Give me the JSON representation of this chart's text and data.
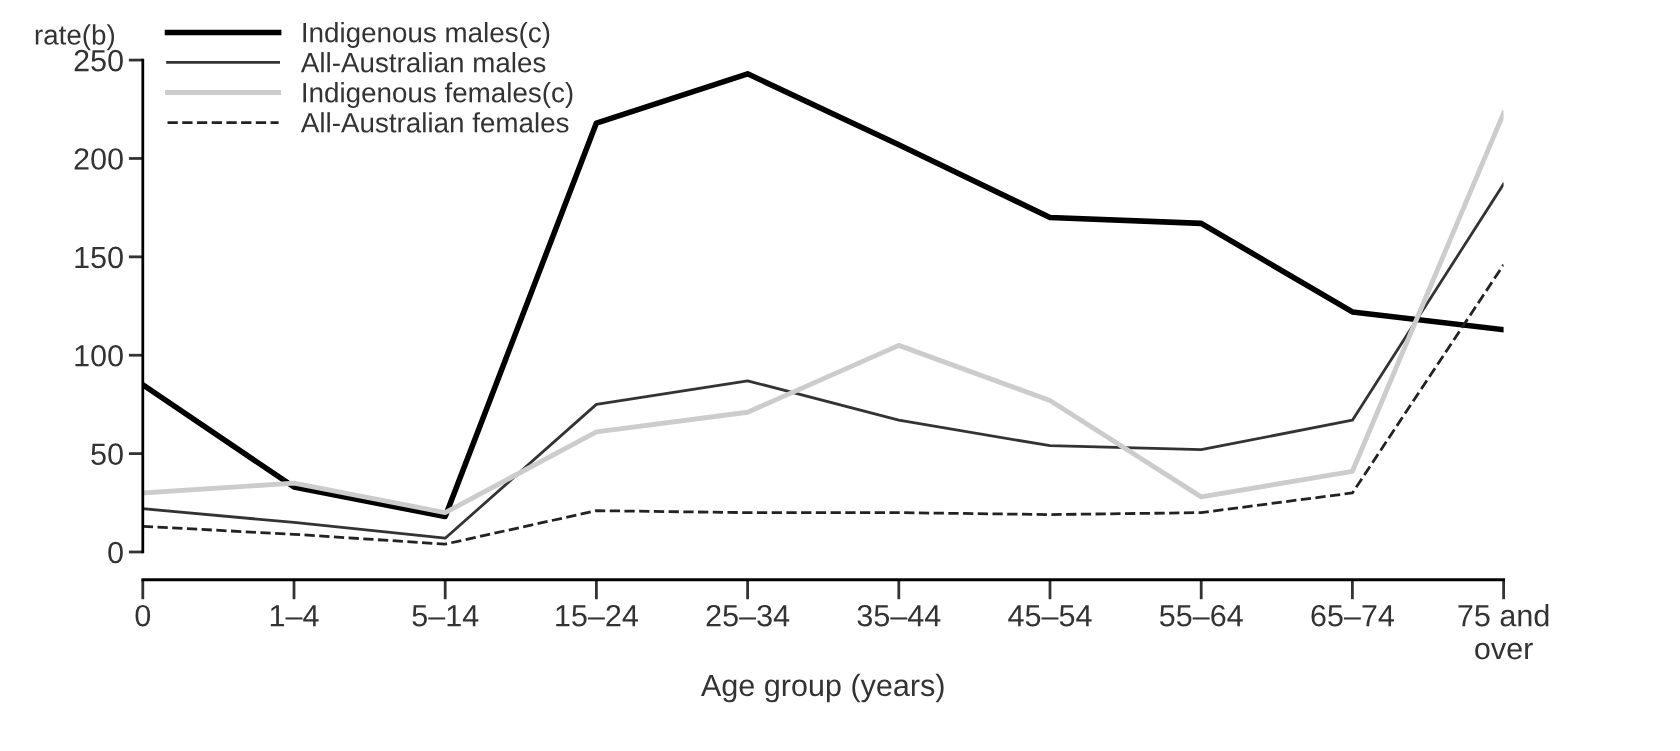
{
  "chart_data": {
    "type": "line",
    "ylabel": "rate(b)",
    "xlabel": "Age group (years)",
    "categories": [
      "0",
      "1–4",
      "5–14",
      "15–24",
      "25–34",
      "35–44",
      "45–54",
      "55–64",
      "65–74",
      "75 and\nover"
    ],
    "series": [
      {
        "name": "Indigenous males(c)",
        "color": "#000000",
        "values": [
          85,
          33,
          18,
          218,
          243,
          207,
          170,
          167,
          122,
          113
        ]
      },
      {
        "name": "All-Australian males",
        "color": "#333333",
        "values": [
          22,
          15,
          7,
          75,
          87,
          67,
          54,
          52,
          67,
          187
        ]
      },
      {
        "name": "Indigenous females(c)",
        "color": "#cccccc",
        "values": [
          30,
          35,
          20,
          61,
          71,
          105,
          77,
          28,
          41,
          223
        ]
      },
      {
        "name": "All-Australian females",
        "color": "#222222",
        "line_style": "dashed",
        "values": [
          13,
          9,
          4,
          21,
          20,
          20,
          19,
          20,
          30,
          146
        ]
      }
    ],
    "ylim": [
      0,
      250
    ],
    "yticks": [
      0,
      50,
      100,
      150,
      200,
      250
    ],
    "grid": false,
    "legend": "top left",
    "marker": "none",
    "line_style": "solid"
  }
}
